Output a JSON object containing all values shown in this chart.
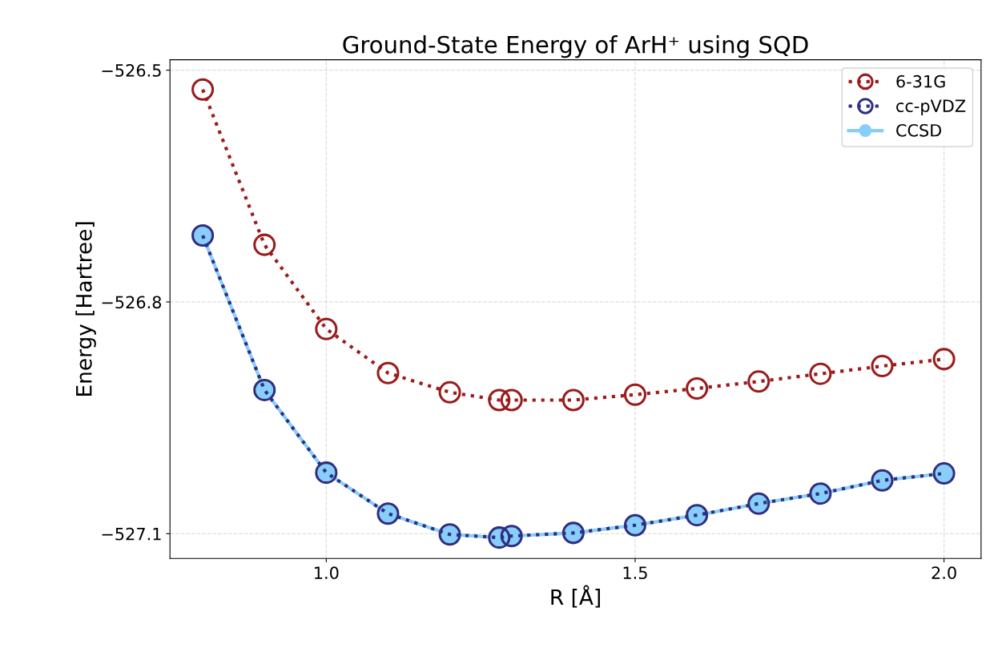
{
  "chart_data": {
    "type": "line",
    "title": "Ground-State Energy of ArH⁺ using SQD",
    "xlabel": "R [Å]",
    "ylabel": "Energy [Hartree]",
    "x": [
      0.8,
      0.9,
      1.0,
      1.1,
      1.2,
      1.28,
      1.3,
      1.4,
      1.5,
      1.6,
      1.7,
      1.8,
      1.9,
      2.0
    ],
    "series": [
      {
        "name": "CCSD",
        "color": "#87cefa",
        "line_style": "solid",
        "values": [
          -526.714,
          -526.914,
          -527.021,
          -527.074,
          -527.101,
          -527.105,
          -527.103,
          -527.099,
          -527.089,
          -527.076,
          -527.061,
          -527.048,
          -527.031,
          -527.022
        ]
      },
      {
        "name": "6-31G",
        "color": "#9b1c1c",
        "line_style": "dotted",
        "values": [
          -526.525,
          -526.726,
          -526.835,
          -526.892,
          -526.917,
          -526.927,
          -526.927,
          -526.927,
          -526.92,
          -526.912,
          -526.903,
          -526.893,
          -526.883,
          -526.874
        ]
      },
      {
        "name": "cc-pVDZ",
        "color": "#2e2e82",
        "line_style": "dotted",
        "values": [
          -526.714,
          -526.914,
          -527.021,
          -527.074,
          -527.101,
          -527.105,
          -527.103,
          -527.099,
          -527.089,
          -527.076,
          -527.061,
          -527.048,
          -527.031,
          -527.022
        ]
      }
    ],
    "marker": "circle",
    "xlim": [
      0.747,
      2.06
    ],
    "ylim": [
      -527.132,
      -526.4865
    ],
    "xticks": [
      {
        "value": 1.0,
        "label": "1.0"
      },
      {
        "value": 1.5,
        "label": "1.5"
      },
      {
        "value": 2.0,
        "label": "2.0"
      }
    ],
    "yticks": [
      {
        "value": -527.1,
        "label": "−527.1"
      },
      {
        "value": -526.8,
        "label": "−526.8"
      },
      {
        "value": -526.5,
        "label": "−526.5"
      }
    ],
    "grid": true,
    "legend": "top right"
  }
}
